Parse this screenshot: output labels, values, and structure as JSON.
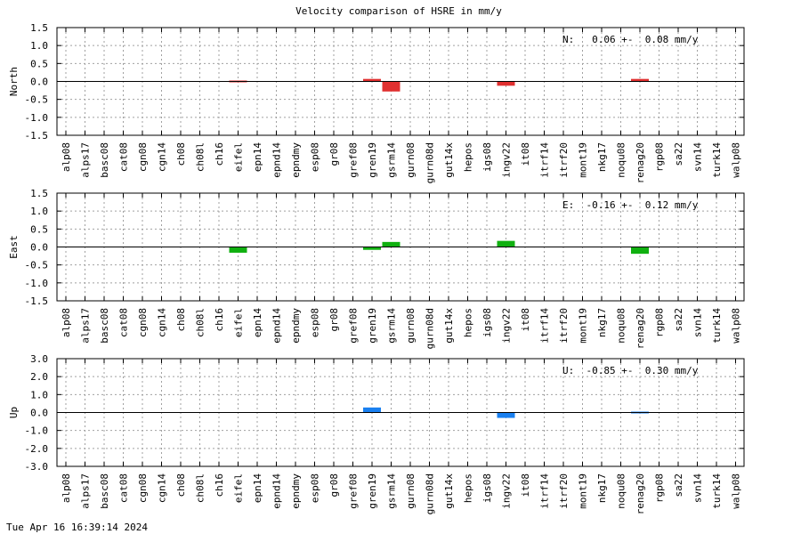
{
  "title": "Velocity comparison of HSRE in mm/y",
  "footer": "Tue Apr 16 16:39:14 2024",
  "chart_data": [
    {
      "type": "bar",
      "ylabel": "North",
      "stat_text": "N:   0.06 +-  0.08 mm/y",
      "ylim": [
        -1.5,
        1.5
      ],
      "yticks": [
        -1.5,
        -1.0,
        -0.5,
        0.0,
        0.5,
        1.0,
        1.5
      ],
      "yticklabels": [
        "-1.5",
        "-1.0",
        "-0.5",
        "0.0",
        "0.5",
        "1.0",
        "1.5"
      ],
      "color": "#e03030",
      "grid": true,
      "categories": [
        "alp08",
        "alps17",
        "basc08",
        "cat08",
        "cgn08",
        "cgn14",
        "ch08",
        "ch08l",
        "ch16",
        "eifel",
        "epn14",
        "epnd14",
        "epndmy",
        "esp08",
        "gr08",
        "gref08",
        "gren19",
        "gsrm14",
        "gurn08",
        "gurn08d",
        "gut14x",
        "hepos",
        "igs08",
        "ingv22",
        "it08",
        "itrf14",
        "itrf20",
        "mont19",
        "nkg17",
        "noqu08",
        "renag20",
        "rgp08",
        "sa22",
        "svn14",
        "turk14",
        "walp08"
      ],
      "values": [
        null,
        null,
        null,
        null,
        null,
        null,
        null,
        null,
        null,
        0.02,
        null,
        null,
        null,
        null,
        null,
        null,
        0.07,
        -0.28,
        null,
        null,
        null,
        null,
        null,
        -0.12,
        null,
        null,
        null,
        null,
        null,
        null,
        0.07,
        null,
        null,
        null,
        null,
        null
      ]
    },
    {
      "type": "bar",
      "ylabel": "East",
      "stat_text": "E:  -0.16 +-  0.12 mm/y",
      "ylim": [
        -1.5,
        1.5
      ],
      "yticks": [
        -1.5,
        -1.0,
        -0.5,
        0.0,
        0.5,
        1.0,
        1.5
      ],
      "yticklabels": [
        "-1.5",
        "-1.0",
        "-0.5",
        "0.0",
        "0.5",
        "1.0",
        "1.5"
      ],
      "color": "#10b010",
      "grid": true,
      "categories": [
        "alp08",
        "alps17",
        "basc08",
        "cat08",
        "cgn08",
        "cgn14",
        "ch08",
        "ch08l",
        "ch16",
        "eifel",
        "epn14",
        "epnd14",
        "epndmy",
        "esp08",
        "gr08",
        "gref08",
        "gren19",
        "gsrm14",
        "gurn08",
        "gurn08d",
        "gut14x",
        "hepos",
        "igs08",
        "ingv22",
        "it08",
        "itrf14",
        "itrf20",
        "mont19",
        "nkg17",
        "noqu08",
        "renag20",
        "rgp08",
        "sa22",
        "svn14",
        "turk14",
        "walp08"
      ],
      "values": [
        null,
        null,
        null,
        null,
        null,
        null,
        null,
        null,
        null,
        -0.16,
        null,
        null,
        null,
        null,
        null,
        null,
        -0.08,
        0.14,
        null,
        null,
        null,
        null,
        null,
        0.17,
        null,
        null,
        null,
        null,
        null,
        null,
        -0.19,
        null,
        null,
        null,
        null,
        null
      ]
    },
    {
      "type": "bar",
      "ylabel": "Up",
      "stat_text": "U:  -0.85 +-  0.30 mm/y",
      "ylim": [
        -3.0,
        3.0
      ],
      "yticks": [
        -3.0,
        -2.0,
        -1.0,
        0.0,
        1.0,
        2.0,
        3.0
      ],
      "yticklabels": [
        "-3.0",
        "-2.0",
        "-1.0",
        "0.0",
        "1.0",
        "2.0",
        "3.0"
      ],
      "color": "#1a80f0",
      "grid": true,
      "categories": [
        "alp08",
        "alps17",
        "basc08",
        "cat08",
        "cgn08",
        "cgn14",
        "ch08",
        "ch08l",
        "ch16",
        "eifel",
        "epn14",
        "epnd14",
        "epndmy",
        "esp08",
        "gr08",
        "gref08",
        "gren19",
        "gsrm14",
        "gurn08",
        "gurn08d",
        "gut14x",
        "hepos",
        "igs08",
        "ingv22",
        "it08",
        "itrf14",
        "itrf20",
        "mont19",
        "nkg17",
        "noqu08",
        "renag20",
        "rgp08",
        "sa22",
        "svn14",
        "turk14",
        "walp08"
      ],
      "values": [
        null,
        null,
        null,
        null,
        null,
        null,
        null,
        null,
        null,
        null,
        null,
        null,
        null,
        null,
        null,
        null,
        0.28,
        null,
        null,
        null,
        null,
        null,
        null,
        -0.3,
        null,
        null,
        null,
        null,
        null,
        null,
        -0.08,
        null,
        null,
        null,
        null,
        null
      ]
    }
  ]
}
